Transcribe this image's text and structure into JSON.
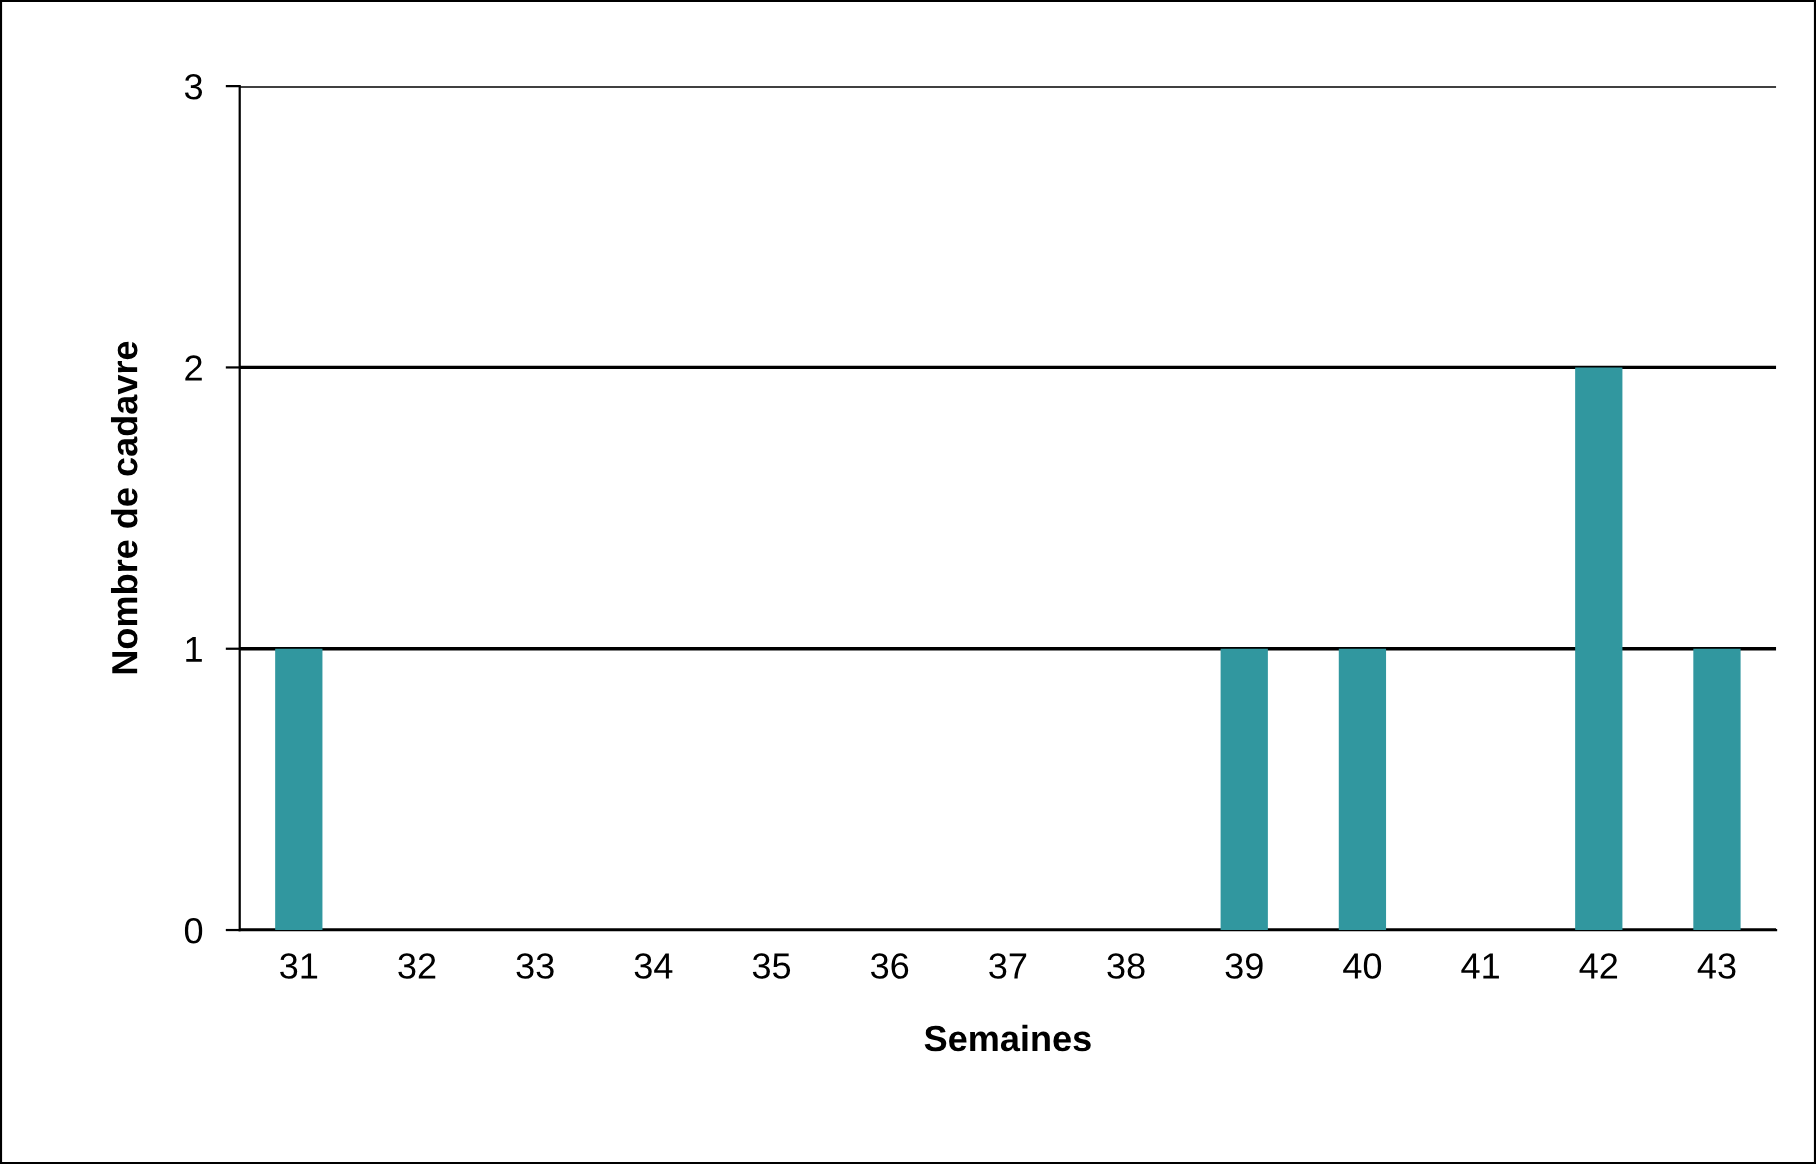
{
  "chart_data": {
    "type": "bar",
    "xlabel": "Semaines",
    "ylabel": "Nombre de cadavre",
    "categories": [
      "31",
      "32",
      "33",
      "34",
      "35",
      "36",
      "37",
      "38",
      "39",
      "40",
      "41",
      "42",
      "43"
    ],
    "values": [
      1,
      0,
      0,
      0,
      0,
      0,
      0,
      0,
      1,
      1,
      0,
      2,
      1
    ],
    "color": "#31979f",
    "ylim": [
      0,
      3
    ],
    "yticks": [
      0,
      1,
      2,
      3
    ],
    "grid": "y",
    "legend": false
  }
}
